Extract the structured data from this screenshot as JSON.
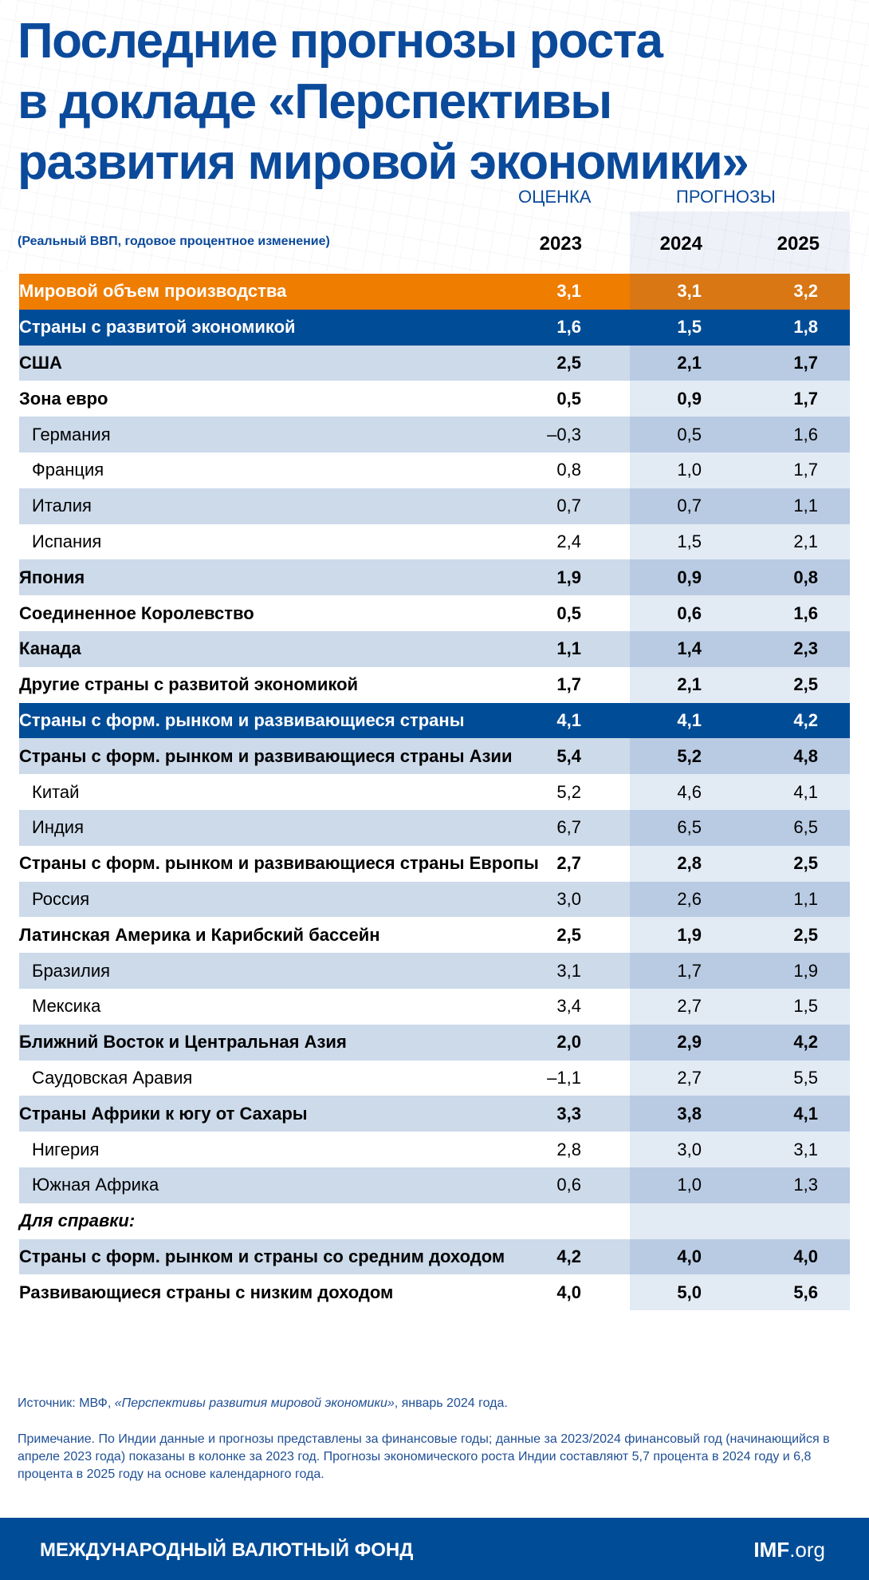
{
  "title": [
    "Последние прогнозы роста",
    "в докладе «Перспективы",
    "развития мировой экономики»"
  ],
  "header": {
    "estimate": "ОЦЕНКА",
    "projections": "ПРОГНОЗЫ",
    "subtitle": "(Реальный ВВП, годовое процентное изменение)",
    "years": [
      "2023",
      "2024",
      "2025"
    ]
  },
  "colors": {
    "orange": "#EF7D00",
    "blue": "#004C97",
    "light_row": "#CCDAEA",
    "title": "#0B4A9B"
  },
  "rows": [
    {
      "label": "Мировой объем производства",
      "values": [
        "3,1",
        "3,1",
        "3,2"
      ],
      "style": "orange"
    },
    {
      "label": "Страны с развитой экономикой",
      "values": [
        "1,6",
        "1,5",
        "1,8"
      ],
      "style": "blue"
    },
    {
      "label": "США",
      "values": [
        "2,5",
        "2,1",
        "1,7"
      ],
      "style": "light bold"
    },
    {
      "label": "Зона евро",
      "values": [
        "0,5",
        "0,9",
        "1,7"
      ],
      "style": "white bold"
    },
    {
      "label": "Германия",
      "values": [
        "–0,3",
        "0,5",
        "1,6"
      ],
      "style": "light indent"
    },
    {
      "label": "Франция",
      "values": [
        "0,8",
        "1,0",
        "1,7"
      ],
      "style": "white indent"
    },
    {
      "label": "Италия",
      "values": [
        "0,7",
        "0,7",
        "1,1"
      ],
      "style": "light indent"
    },
    {
      "label": "Испания",
      "values": [
        "2,4",
        "1,5",
        "2,1"
      ],
      "style": "white indent"
    },
    {
      "label": "Япония",
      "values": [
        "1,9",
        "0,9",
        "0,8"
      ],
      "style": "light bold"
    },
    {
      "label": "Соединенное Королевство",
      "values": [
        "0,5",
        "0,6",
        "1,6"
      ],
      "style": "white bold"
    },
    {
      "label": "Канада",
      "values": [
        "1,1",
        "1,4",
        "2,3"
      ],
      "style": "light bold"
    },
    {
      "label": "Другие страны с развитой экономикой",
      "values": [
        "1,7",
        "2,1",
        "2,5"
      ],
      "style": "white bold"
    },
    {
      "label": "Страны с форм. рынком и развивающиеся страны",
      "values": [
        "4,1",
        "4,1",
        "4,2"
      ],
      "style": "blue"
    },
    {
      "label": "Страны с форм. рынком и развивающиеся страны Азии",
      "values": [
        "5,4",
        "5,2",
        "4,8"
      ],
      "style": "light bold"
    },
    {
      "label": "Китай",
      "values": [
        "5,2",
        "4,6",
        "4,1"
      ],
      "style": "white indent"
    },
    {
      "label": "Индия",
      "values": [
        "6,7",
        "6,5",
        "6,5"
      ],
      "style": "light indent"
    },
    {
      "label": "Страны с форм. рынком и развивающиеся страны Европы",
      "values": [
        "2,7",
        "2,8",
        "2,5"
      ],
      "style": "white bold"
    },
    {
      "label": "Россия",
      "values": [
        "3,0",
        "2,6",
        "1,1"
      ],
      "style": "light indent"
    },
    {
      "label": "Латинская Америка и Карибский бассейн",
      "values": [
        "2,5",
        "1,9",
        "2,5"
      ],
      "style": "white bold"
    },
    {
      "label": "Бразилия",
      "values": [
        "3,1",
        "1,7",
        "1,9"
      ],
      "style": "light indent"
    },
    {
      "label": "Мексика",
      "values": [
        "3,4",
        "2,7",
        "1,5"
      ],
      "style": "white indent"
    },
    {
      "label": "Ближний Восток и Центральная Азия",
      "values": [
        "2,0",
        "2,9",
        "4,2"
      ],
      "style": "light bold"
    },
    {
      "label": "Саудовская Аравия",
      "values": [
        "–1,1",
        "2,7",
        "5,5"
      ],
      "style": "white indent"
    },
    {
      "label": "Страны Африки к югу от Сахары",
      "values": [
        "3,3",
        "3,8",
        "4,1"
      ],
      "style": "light bold"
    },
    {
      "label": "Нигерия",
      "values": [
        "2,8",
        "3,0",
        "3,1"
      ],
      "style": "white indent"
    },
    {
      "label": "Южная Африка",
      "values": [
        "0,6",
        "1,0",
        "1,3"
      ],
      "style": "light indent"
    },
    {
      "label": "Для справки:",
      "values": [
        "",
        "",
        ""
      ],
      "style": "white memo"
    },
    {
      "label": "Страны с форм. рынком и страны со средним доходом",
      "values": [
        "4,2",
        "4,0",
        "4,0"
      ],
      "style": "light bold"
    },
    {
      "label": "Развивающиеся страны с низким доходом",
      "values": [
        "4,0",
        "5,0",
        "5,6"
      ],
      "style": "white bold"
    }
  ],
  "source": {
    "prefix": "Источник: МВФ, ",
    "italic": "«Перспективы развития мировой экономики»",
    "suffix": ", январь 2024 года."
  },
  "note": "Примечание. По Индии данные и прогнозы представлены за финансовые годы; данные за 2023/2024 финансовый год (начинающийся в апреле 2023 года) показаны в колонке за 2023 год. Прогнозы экономического роста Индии составляют 5,7 процента в 2024 году и 6,8 процента в 2025 году на основе календарного года.",
  "footer": {
    "org": "МЕЖДУНАРОДНЫЙ ВАЛЮТНЫЙ ФОНД",
    "site_bold": "IMF",
    "site_rest": ".org"
  }
}
